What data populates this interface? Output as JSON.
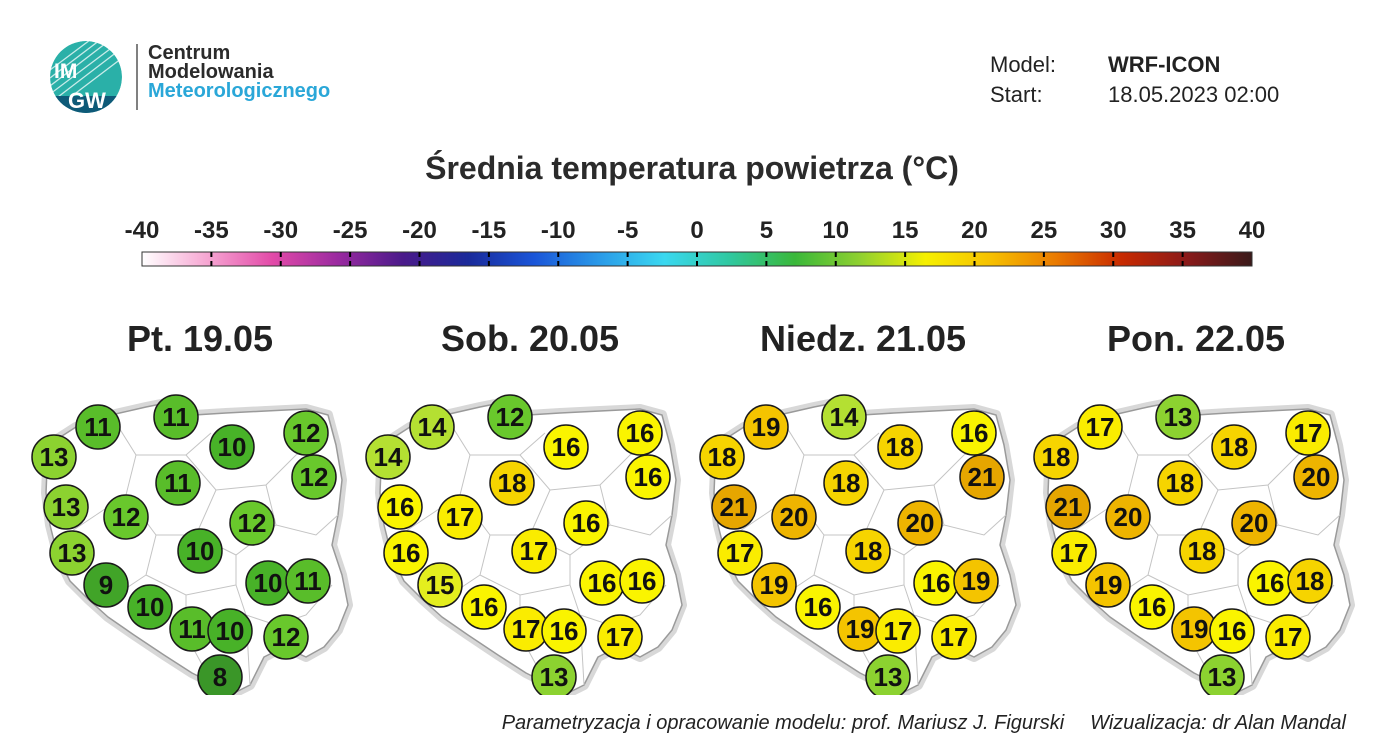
{
  "header": {
    "org_line1": "Centrum",
    "org_line2": "Modelowania",
    "org_line3": "Meteorologicznego",
    "logo_text_top": "IM",
    "logo_text_bottom": "GW",
    "model_label": "Model:",
    "model_value": "WRF-ICON",
    "start_label": "Start:",
    "start_value": "18.05.2023 02:00"
  },
  "title": "Średnia temperatura powietrza (°C)",
  "scale": {
    "ticks": [
      "-40",
      "-35",
      "-30",
      "-25",
      "-20",
      "-15",
      "-10",
      "-5",
      "0",
      "5",
      "10",
      "15",
      "20",
      "25",
      "30",
      "35",
      "40"
    ],
    "colors": [
      "#ffffff",
      "#f6a6d2",
      "#e24aa8",
      "#9a2aa0",
      "#4a1a8a",
      "#1a2a9a",
      "#1a55d8",
      "#2a9ae8",
      "#3ad8f0",
      "#30c8a0",
      "#3ab83a",
      "#90d030",
      "#f6f000",
      "#f6c000",
      "#ea7a00",
      "#c82a00",
      "#8a1a1a",
      "#3a1a1a"
    ]
  },
  "days": [
    {
      "label": "Pt. 19.05",
      "values": [
        13,
        11,
        11,
        10,
        12,
        12,
        13,
        12,
        11,
        12,
        10,
        13,
        9,
        10,
        10,
        11,
        11,
        10,
        12,
        8
      ]
    },
    {
      "label": "Sob. 20.05",
      "values": [
        14,
        14,
        12,
        16,
        16,
        16,
        16,
        17,
        18,
        16,
        17,
        16,
        15,
        16,
        16,
        16,
        17,
        16,
        17,
        13
      ]
    },
    {
      "label": "Niedz. 21.05",
      "values": [
        18,
        19,
        14,
        18,
        16,
        21,
        21,
        20,
        18,
        20,
        18,
        17,
        19,
        16,
        16,
        19,
        19,
        17,
        17,
        13
      ]
    },
    {
      "label": "Pon. 22.05",
      "values": [
        18,
        17,
        13,
        18,
        17,
        20,
        21,
        20,
        18,
        20,
        18,
        17,
        19,
        16,
        16,
        18,
        19,
        16,
        17,
        13
      ]
    }
  ],
  "footer": {
    "credit": "Parametryzacja i opracowanie modelu: prof. Mariusz J. Figurski",
    "viz": "Wizualizacja: dr Alan Mandal"
  }
}
